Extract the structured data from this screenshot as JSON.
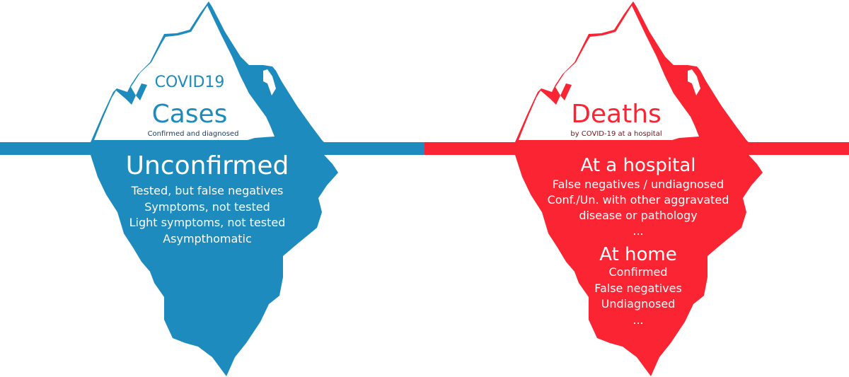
{
  "colors": {
    "cases": "#1d8bbd",
    "deaths": "#fa2433",
    "cases_subtitle": "#1c3f66",
    "deaths_subtitle": "#7a0f18",
    "background": "#ffffff"
  },
  "cases": {
    "above": {
      "title_small": "COVID19",
      "title": "Cases",
      "subtitle": "Confirmed and diagnosed"
    },
    "below": {
      "heading": "Unconfirmed",
      "items": [
        "Tested, but false negatives",
        "Symptoms, not tested",
        "Light symptoms, not tested",
        "Asympthomatic"
      ]
    }
  },
  "deaths": {
    "above": {
      "title": "Deaths",
      "subtitle": "by COVID-19 at a hospital"
    },
    "below": {
      "heading": "At a hospital",
      "items": [
        "False negatives / undiagnosed",
        "Conf./Un. with other aggravated",
        "disease or pathology",
        "..."
      ],
      "heading2": "At home",
      "items2": [
        "Confirmed",
        "False negatives",
        "Undiagnosed",
        "..."
      ]
    }
  }
}
